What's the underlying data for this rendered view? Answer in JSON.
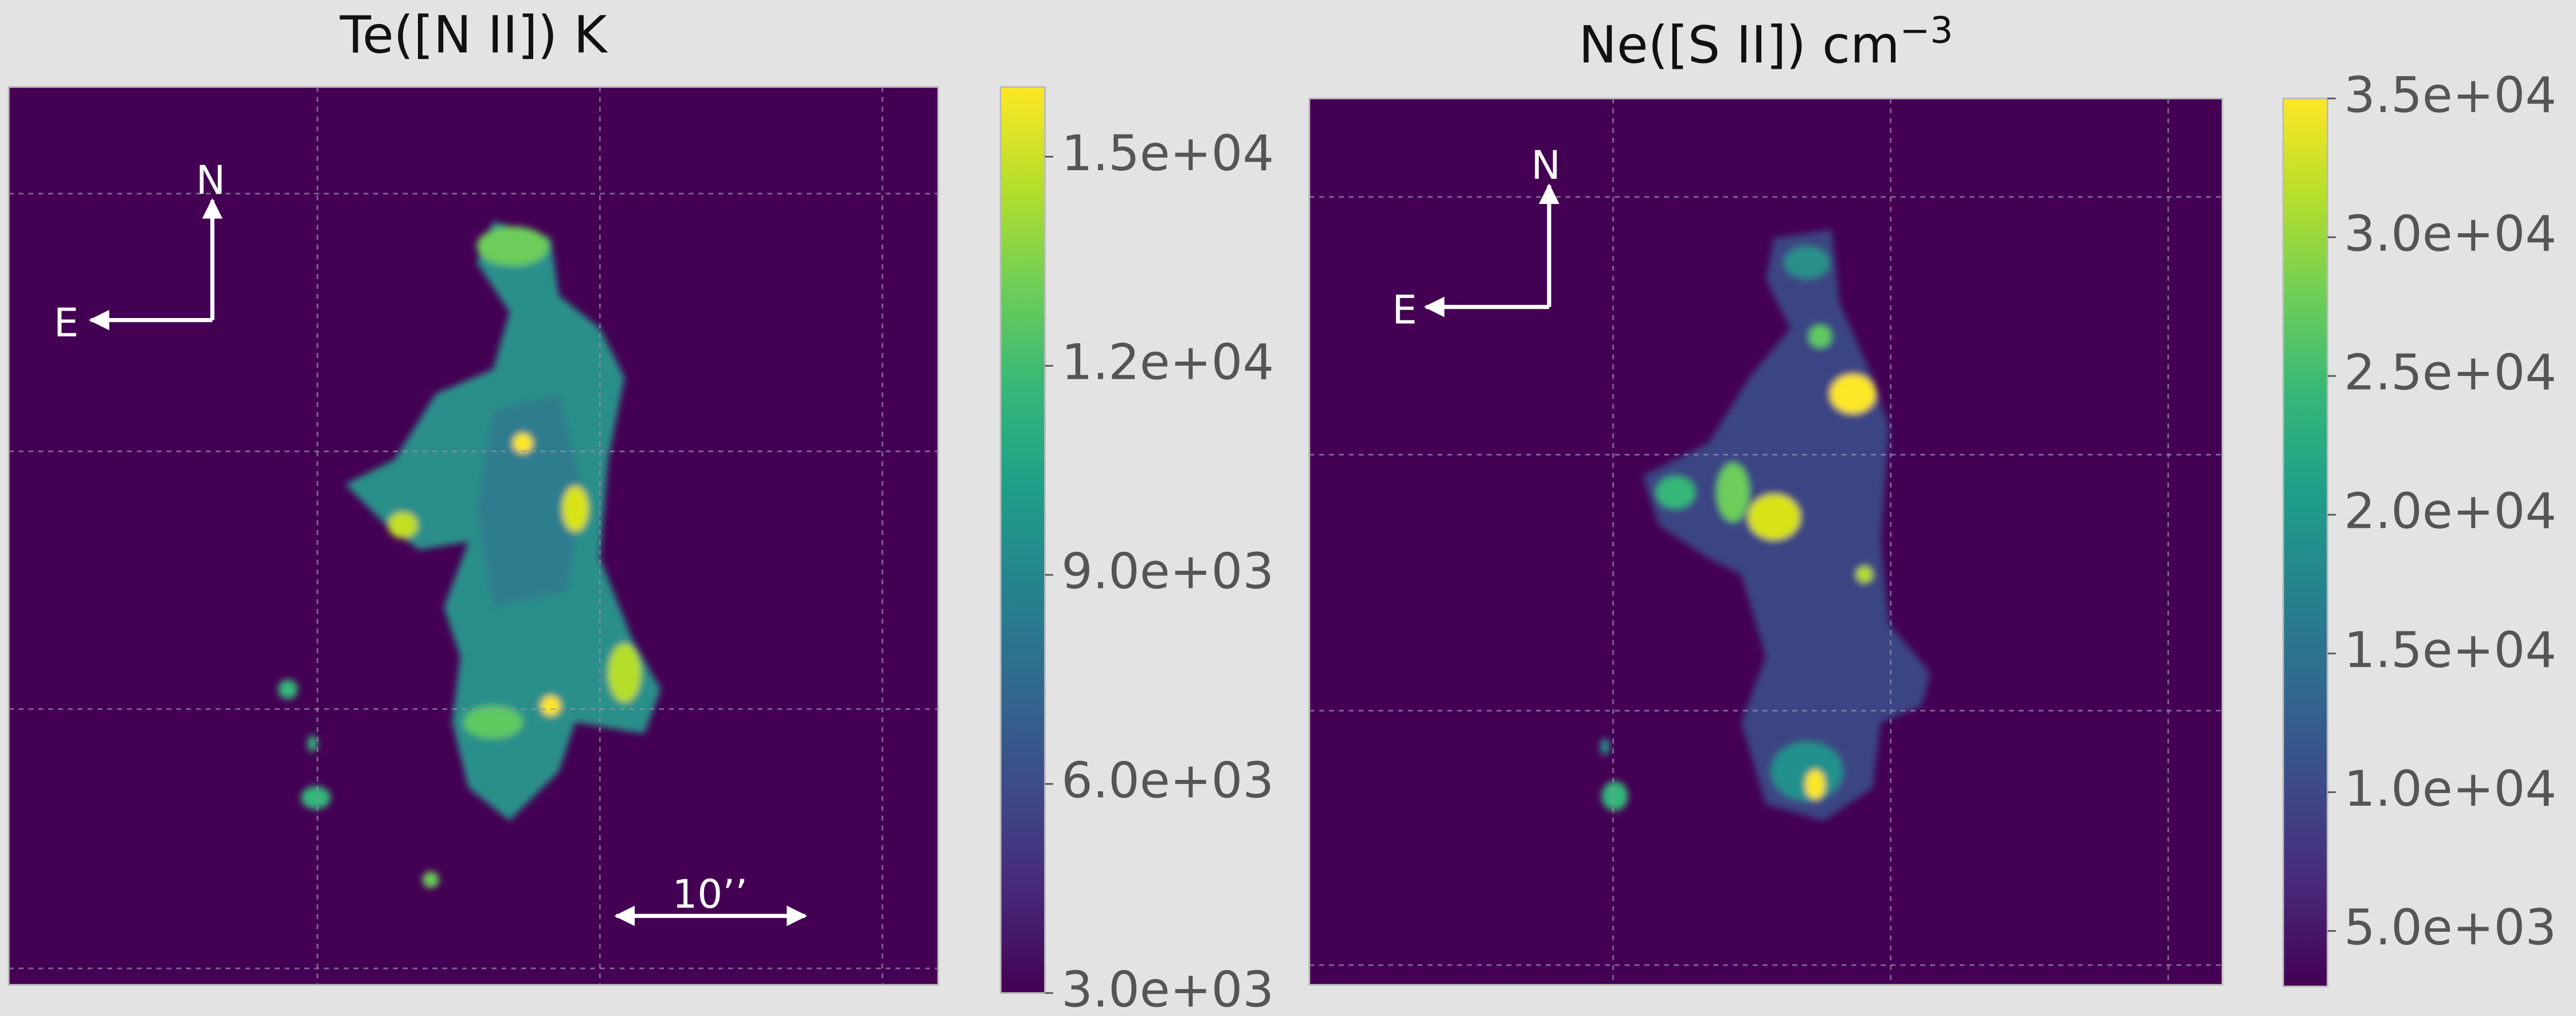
{
  "chart_data": [
    {
      "type": "image",
      "title": "Te([N II]) K",
      "colormap": "viridis",
      "clim": [
        3000,
        16000
      ],
      "cticks": [
        {
          "value": 3000,
          "label": "3.0e+03"
        },
        {
          "value": 6000,
          "label": "6.0e+03"
        },
        {
          "value": 9000,
          "label": "9.0e+03"
        },
        {
          "value": 12000,
          "label": "1.2e+04"
        },
        {
          "value": 15000,
          "label": "1.5e+04"
        }
      ],
      "annotations": {
        "north": "N",
        "east": "E",
        "scale_bar": "10’’"
      }
    },
    {
      "type": "image",
      "title": "Ne([S II]) cm",
      "title_superscript": "−3",
      "colormap": "viridis",
      "clim": [
        3000,
        35000
      ],
      "cticks": [
        {
          "value": 5000,
          "label": "5.0e+03"
        },
        {
          "value": 10000,
          "label": "1.0e+04"
        },
        {
          "value": 15000,
          "label": "1.5e+04"
        },
        {
          "value": 20000,
          "label": "2.0e+04"
        },
        {
          "value": 25000,
          "label": "2.5e+04"
        },
        {
          "value": 30000,
          "label": "3.0e+04"
        },
        {
          "value": 35000,
          "label": "3.5e+04"
        }
      ],
      "annotations": {
        "north": "N",
        "east": "E"
      }
    }
  ]
}
